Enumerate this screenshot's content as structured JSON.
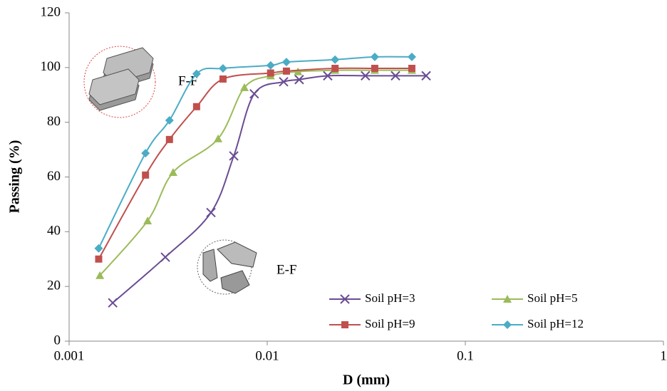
{
  "chart_data": {
    "type": "line",
    "x_label": "D (mm)",
    "y_label": "Passing (%)",
    "xlim": [
      0.001,
      1
    ],
    "xticks": [
      0.001,
      0.01,
      0.1,
      1
    ],
    "x_log": true,
    "ylim": [
      0,
      120
    ],
    "yticks": [
      0,
      20,
      40,
      60,
      80,
      100,
      120
    ],
    "grid": false,
    "legend": "lower right",
    "annotations": [
      "F-F",
      "E-F"
    ],
    "series": [
      {
        "name": "Soil pH=3",
        "color": "#6a4c93",
        "marker": "x",
        "x": [
          0.00166,
          0.00306,
          0.0052,
          0.00678,
          0.0086,
          0.0121,
          0.0145,
          0.0202,
          0.0313,
          0.0444,
          0.0634
        ],
        "values": [
          14,
          30.7,
          47,
          67.7,
          90.4,
          94.8,
          95.6,
          97,
          97,
          97,
          97
        ]
      },
      {
        "name": "Soil pH=5",
        "color": "#9bbb59",
        "marker": "triangle",
        "x": [
          0.00143,
          0.00249,
          0.00335,
          0.00565,
          0.00767,
          0.0104,
          0.0143,
          0.022,
          0.0349,
          0.0537
        ],
        "values": [
          24,
          44,
          61.7,
          74,
          92.7,
          97,
          98.5,
          99,
          99,
          99
        ]
      },
      {
        "name": "Soil pH=9",
        "color": "#c0504d",
        "marker": "square",
        "x": [
          0.00141,
          0.00243,
          0.00321,
          0.0044,
          0.00598,
          0.0104,
          0.0125,
          0.022,
          0.0349,
          0.0537
        ],
        "values": [
          30,
          60.7,
          73.7,
          85.7,
          95.8,
          98,
          98.7,
          99.7,
          99.7,
          99.7
        ]
      },
      {
        "name": "Soil pH=12",
        "color": "#4bacc6",
        "marker": "diamond",
        "x": [
          0.00141,
          0.00243,
          0.00321,
          0.0044,
          0.00598,
          0.0104,
          0.0125,
          0.022,
          0.0349,
          0.0537
        ],
        "values": [
          33.9,
          68.7,
          80.7,
          97.7,
          99.7,
          100.8,
          102,
          102.9,
          103.9,
          103.9
        ]
      }
    ]
  }
}
